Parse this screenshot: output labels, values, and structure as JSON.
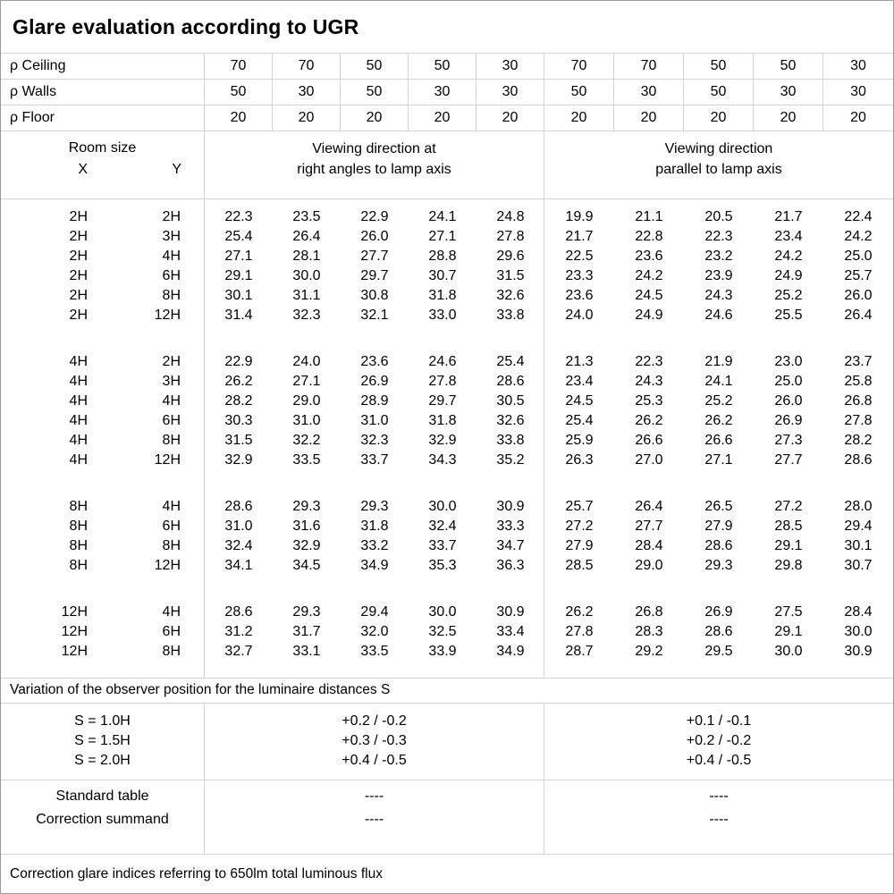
{
  "title": "Glare evaluation according to UGR",
  "reflectance": {
    "rows": [
      {
        "label": "ρ Ceiling",
        "values": [
          "70",
          "70",
          "50",
          "50",
          "30",
          "70",
          "70",
          "50",
          "50",
          "30"
        ]
      },
      {
        "label": "ρ Walls",
        "values": [
          "50",
          "30",
          "50",
          "30",
          "30",
          "50",
          "30",
          "50",
          "30",
          "30"
        ]
      },
      {
        "label": "ρ Floor",
        "values": [
          "20",
          "20",
          "20",
          "20",
          "20",
          "20",
          "20",
          "20",
          "20",
          "20"
        ]
      }
    ]
  },
  "room_size_header": {
    "title": "Room size",
    "x_label": "X",
    "y_label": "Y"
  },
  "group_headers": {
    "left_line1": "Viewing direction at",
    "left_line2": "right angles to lamp axis",
    "right_line1": "Viewing direction",
    "right_line2": "parallel to lamp axis"
  },
  "ugr_table": {
    "groups": [
      {
        "rows": [
          {
            "x": "2H",
            "y": "2H",
            "right_angles": [
              "22.3",
              "23.5",
              "22.9",
              "24.1",
              "24.8"
            ],
            "parallel": [
              "19.9",
              "21.1",
              "20.5",
              "21.7",
              "22.4"
            ]
          },
          {
            "x": "2H",
            "y": "3H",
            "right_angles": [
              "25.4",
              "26.4",
              "26.0",
              "27.1",
              "27.8"
            ],
            "parallel": [
              "21.7",
              "22.8",
              "22.3",
              "23.4",
              "24.2"
            ]
          },
          {
            "x": "2H",
            "y": "4H",
            "right_angles": [
              "27.1",
              "28.1",
              "27.7",
              "28.8",
              "29.6"
            ],
            "parallel": [
              "22.5",
              "23.6",
              "23.2",
              "24.2",
              "25.0"
            ]
          },
          {
            "x": "2H",
            "y": "6H",
            "right_angles": [
              "29.1",
              "30.0",
              "29.7",
              "30.7",
              "31.5"
            ],
            "parallel": [
              "23.3",
              "24.2",
              "23.9",
              "24.9",
              "25.7"
            ]
          },
          {
            "x": "2H",
            "y": "8H",
            "right_angles": [
              "30.1",
              "31.1",
              "30.8",
              "31.8",
              "32.6"
            ],
            "parallel": [
              "23.6",
              "24.5",
              "24.3",
              "25.2",
              "26.0"
            ]
          },
          {
            "x": "2H",
            "y": "12H",
            "right_angles": [
              "31.4",
              "32.3",
              "32.1",
              "33.0",
              "33.8"
            ],
            "parallel": [
              "24.0",
              "24.9",
              "24.6",
              "25.5",
              "26.4"
            ]
          }
        ]
      },
      {
        "rows": [
          {
            "x": "4H",
            "y": "2H",
            "right_angles": [
              "22.9",
              "24.0",
              "23.6",
              "24.6",
              "25.4"
            ],
            "parallel": [
              "21.3",
              "22.3",
              "21.9",
              "23.0",
              "23.7"
            ]
          },
          {
            "x": "4H",
            "y": "3H",
            "right_angles": [
              "26.2",
              "27.1",
              "26.9",
              "27.8",
              "28.6"
            ],
            "parallel": [
              "23.4",
              "24.3",
              "24.1",
              "25.0",
              "25.8"
            ]
          },
          {
            "x": "4H",
            "y": "4H",
            "right_angles": [
              "28.2",
              "29.0",
              "28.9",
              "29.7",
              "30.5"
            ],
            "parallel": [
              "24.5",
              "25.3",
              "25.2",
              "26.0",
              "26.8"
            ]
          },
          {
            "x": "4H",
            "y": "6H",
            "right_angles": [
              "30.3",
              "31.0",
              "31.0",
              "31.8",
              "32.6"
            ],
            "parallel": [
              "25.4",
              "26.2",
              "26.2",
              "26.9",
              "27.8"
            ]
          },
          {
            "x": "4H",
            "y": "8H",
            "right_angles": [
              "31.5",
              "32.2",
              "32.3",
              "32.9",
              "33.8"
            ],
            "parallel": [
              "25.9",
              "26.6",
              "26.6",
              "27.3",
              "28.2"
            ]
          },
          {
            "x": "4H",
            "y": "12H",
            "right_angles": [
              "32.9",
              "33.5",
              "33.7",
              "34.3",
              "35.2"
            ],
            "parallel": [
              "26.3",
              "27.0",
              "27.1",
              "27.7",
              "28.6"
            ]
          }
        ]
      },
      {
        "rows": [
          {
            "x": "8H",
            "y": "4H",
            "right_angles": [
              "28.6",
              "29.3",
              "29.3",
              "30.0",
              "30.9"
            ],
            "parallel": [
              "25.7",
              "26.4",
              "26.5",
              "27.2",
              "28.0"
            ]
          },
          {
            "x": "8H",
            "y": "6H",
            "right_angles": [
              "31.0",
              "31.6",
              "31.8",
              "32.4",
              "33.3"
            ],
            "parallel": [
              "27.2",
              "27.7",
              "27.9",
              "28.5",
              "29.4"
            ]
          },
          {
            "x": "8H",
            "y": "8H",
            "right_angles": [
              "32.4",
              "32.9",
              "33.2",
              "33.7",
              "34.7"
            ],
            "parallel": [
              "27.9",
              "28.4",
              "28.6",
              "29.1",
              "30.1"
            ]
          },
          {
            "x": "8H",
            "y": "12H",
            "right_angles": [
              "34.1",
              "34.5",
              "34.9",
              "35.3",
              "36.3"
            ],
            "parallel": [
              "28.5",
              "29.0",
              "29.3",
              "29.8",
              "30.7"
            ]
          }
        ]
      },
      {
        "rows": [
          {
            "x": "12H",
            "y": "4H",
            "right_angles": [
              "28.6",
              "29.3",
              "29.4",
              "30.0",
              "30.9"
            ],
            "parallel": [
              "26.2",
              "26.8",
              "26.9",
              "27.5",
              "28.4"
            ]
          },
          {
            "x": "12H",
            "y": "6H",
            "right_angles": [
              "31.2",
              "31.7",
              "32.0",
              "32.5",
              "33.4"
            ],
            "parallel": [
              "27.8",
              "28.3",
              "28.6",
              "29.1",
              "30.0"
            ]
          },
          {
            "x": "12H",
            "y": "8H",
            "right_angles": [
              "32.7",
              "33.1",
              "33.5",
              "33.9",
              "34.9"
            ],
            "parallel": [
              "28.7",
              "29.2",
              "29.5",
              "30.0",
              "30.9"
            ]
          }
        ]
      }
    ]
  },
  "variation_note": "Variation of the observer position for the luminaire distances S",
  "variation": {
    "labels": [
      "S = 1.0H",
      "S = 1.5H",
      "S = 2.0H"
    ],
    "right_angles": [
      "+0.2 / -0.2",
      "+0.3 / -0.3",
      "+0.4 / -0.5"
    ],
    "parallel": [
      "+0.1 / -0.1",
      "+0.2 / -0.2",
      "+0.4 / -0.5"
    ]
  },
  "correction": {
    "rows": [
      {
        "label": "Standard table",
        "right_angles": "----",
        "parallel": "----"
      },
      {
        "label": "Correction summand",
        "right_angles": "----",
        "parallel": "----"
      }
    ]
  },
  "footer": "Correction glare indices referring to 650lm total luminous flux"
}
